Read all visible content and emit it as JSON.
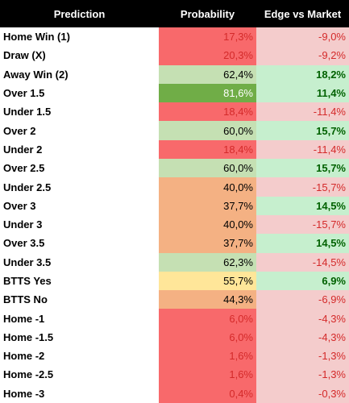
{
  "table": {
    "header": [
      "Prediction",
      "Probability",
      "Edge vs Market"
    ],
    "rows": [
      [
        "Home Win (1)",
        "17,3%",
        "-9,0%"
      ],
      [
        "Draw (X)",
        "20,3%",
        "-9,2%"
      ],
      [
        "Away Win (2)",
        "62,4%",
        "18,2%"
      ],
      [
        "Over 1.5",
        "81,6%",
        "11,4%"
      ],
      [
        "Under 1.5",
        "18,4%",
        "-11,4%"
      ],
      [
        "Over 2",
        "60,0%",
        "15,7%"
      ],
      [
        "Under 2",
        "18,4%",
        "-11,4%"
      ],
      [
        "Over 2.5",
        "60,0%",
        "15,7%"
      ],
      [
        "Under 2.5",
        "40,0%",
        "-15,7%"
      ],
      [
        "Over 3",
        "37,7%",
        "14,5%"
      ],
      [
        "Under 3",
        "40,0%",
        "-15,7%"
      ],
      [
        "Over 3.5",
        "37,7%",
        "14,5%"
      ],
      [
        "Under 3.5",
        "62,3%",
        "-14,5%"
      ],
      [
        "BTTS Yes",
        "55,7%",
        "6,9%"
      ],
      [
        "BTTS No",
        "44,3%",
        "-6,9%"
      ],
      [
        "Home -1",
        "6,0%",
        "-4,3%"
      ],
      [
        "Home -1.5",
        "6,0%",
        "-4,3%"
      ],
      [
        "Home -2",
        "1,6%",
        "-1,3%"
      ],
      [
        "Home -2.5",
        "1,6%",
        "-1,3%"
      ],
      [
        "Home -3",
        "0,4%",
        "-0,3%"
      ]
    ]
  }
}
